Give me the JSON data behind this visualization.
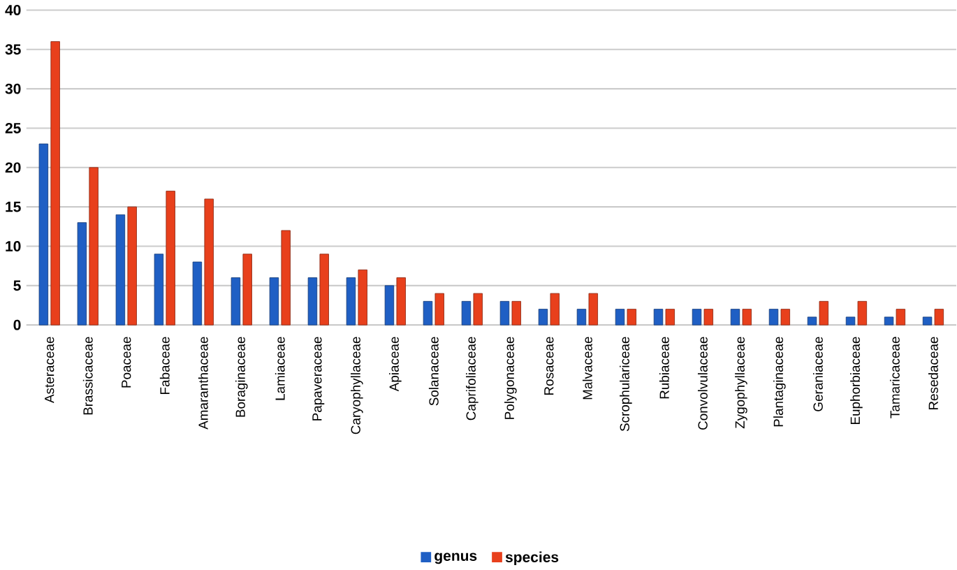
{
  "chart_data": {
    "type": "bar",
    "categories": [
      "Asteraceae",
      "Brassicaceae",
      "Poaceae",
      "Fabaceae",
      "Amaranthaceae",
      "Boraginaceae",
      "Lamiaceae",
      "Papaveraceae",
      "Caryophyllaceae",
      "Apiaceae",
      "Solanaceae",
      "Caprifoliaceae",
      "Polygonaceae",
      "Rosaceae",
      "Malvaceae",
      "Scrophulariceae",
      "Rubiaceae",
      "Convolvulaceae",
      "Zygophyllaceae",
      "Plantaginaceae",
      "Geraniaceae",
      "Euphorbiaceae",
      "Tamaricaceae",
      "Resedaceae"
    ],
    "series": [
      {
        "name": "genus",
        "color": "#1f5fc4",
        "values": [
          23,
          13,
          14,
          9,
          8,
          6,
          6,
          6,
          6,
          5,
          3,
          3,
          3,
          2,
          2,
          2,
          2,
          2,
          2,
          2,
          1,
          1,
          1,
          1
        ]
      },
      {
        "name": "species",
        "color": "#e8401c",
        "values": [
          36,
          20,
          15,
          17,
          16,
          9,
          12,
          9,
          7,
          6,
          4,
          4,
          3,
          4,
          4,
          2,
          2,
          2,
          2,
          2,
          3,
          3,
          2,
          2
        ]
      }
    ],
    "ylim": [
      0,
      40
    ],
    "yticks": [
      0,
      5,
      10,
      15,
      20,
      25,
      30,
      35,
      40
    ],
    "grid": "y",
    "legend": "bottom"
  }
}
